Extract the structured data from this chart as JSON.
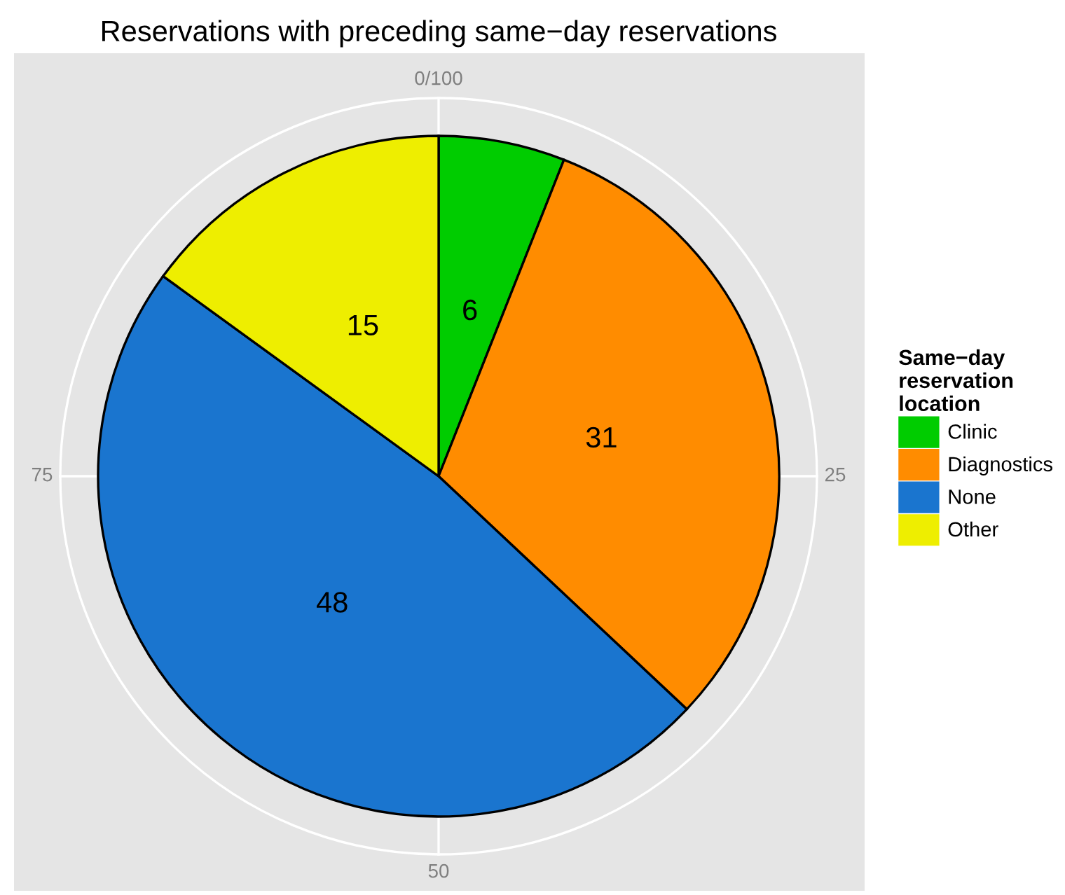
{
  "chart_data": {
    "type": "pie",
    "title": "Reservations with preceding same−day reservations",
    "legend_title": "Same−day\nreservation\nlocation",
    "categories": [
      "Clinic",
      "Diagnostics",
      "None",
      "Other"
    ],
    "values": [
      6,
      31,
      48,
      15
    ],
    "colors": [
      "#00cc00",
      "#ff8c00",
      "#1a75cf",
      "#eeee00"
    ],
    "data_labels": true,
    "annotations": [
      "0/100",
      "25",
      "50",
      "75"
    ],
    "grid": true,
    "legend": "right"
  }
}
